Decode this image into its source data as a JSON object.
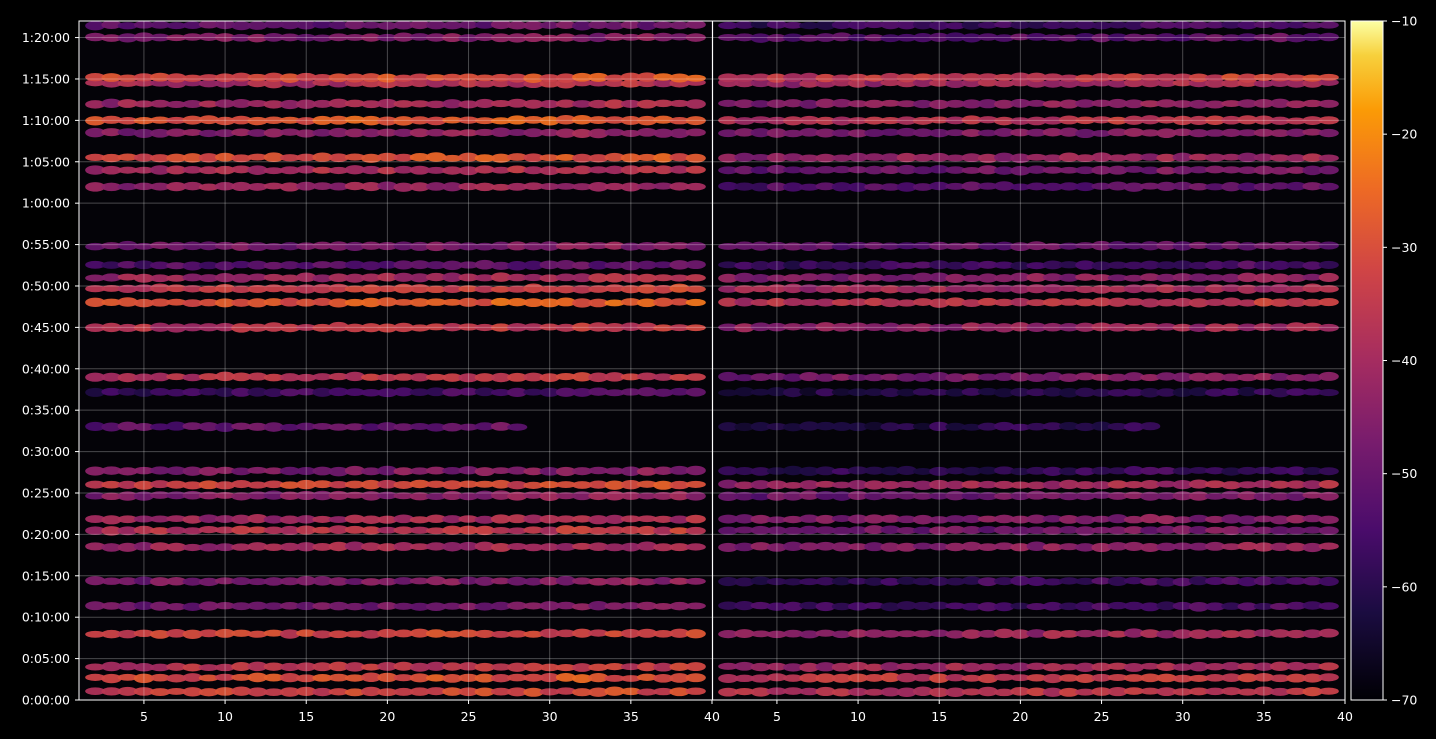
{
  "chart_data": {
    "type": "heatmap",
    "title": "",
    "xlabel": "",
    "ylabel": "",
    "panels": [
      {
        "name": "",
        "xlim": [
          1,
          40
        ],
        "xticks": [
          5,
          10,
          15,
          20,
          25,
          30,
          35,
          40
        ]
      },
      {
        "name": "",
        "xlim": [
          1,
          40
        ],
        "xticks": [
          5,
          10,
          15,
          20,
          25,
          30,
          35,
          40
        ]
      }
    ],
    "y_unit": "h:mm:ss",
    "ylim": [
      0,
      4920
    ],
    "yticks": [
      {
        "label": "0:00:00",
        "value": 0
      },
      {
        "label": "0:05:00",
        "value": 300
      },
      {
        "label": "0:10:00",
        "value": 600
      },
      {
        "label": "0:15:00",
        "value": 900
      },
      {
        "label": "0:20:00",
        "value": 1200
      },
      {
        "label": "0:25:00",
        "value": 1500
      },
      {
        "label": "0:30:00",
        "value": 1800
      },
      {
        "label": "0:35:00",
        "value": 2100
      },
      {
        "label": "0:40:00",
        "value": 2400
      },
      {
        "label": "0:45:00",
        "value": 2700
      },
      {
        "label": "0:50:00",
        "value": 3000
      },
      {
        "label": "0:55:00",
        "value": 3300
      },
      {
        "label": "1:00:00",
        "value": 3600
      },
      {
        "label": "1:05:00",
        "value": 3900
      },
      {
        "label": "1:10:00",
        "value": 4200
      },
      {
        "label": "1:15:00",
        "value": 4500
      },
      {
        "label": "1:20:00",
        "value": 4800
      }
    ],
    "colorbar": {
      "colormap": "inferno",
      "range": [
        -70,
        -10
      ],
      "ticks": [
        -10,
        -20,
        -30,
        -40,
        -50,
        -60,
        -70
      ],
      "tick_labels": [
        "−10",
        "−20",
        "−30",
        "−40",
        "−50",
        "−60",
        "−70"
      ]
    },
    "grid": true,
    "bands": [
      {
        "y": 60,
        "level": -32,
        "x_from": 2,
        "x_to": 39,
        "right_level": -36
      },
      {
        "y": 160,
        "level": -30,
        "x_from": 2,
        "x_to": 39,
        "right_level": -34
      },
      {
        "y": 240,
        "level": -36,
        "x_from": 2,
        "x_to": 39,
        "right_level": -40
      },
      {
        "y": 480,
        "level": -32,
        "x_from": 2,
        "x_to": 39,
        "right_level": -41
      },
      {
        "y": 680,
        "level": -48,
        "x_from": 2,
        "x_to": 39,
        "right_level": -56
      },
      {
        "y": 860,
        "level": -46,
        "x_from": 2,
        "x_to": 39,
        "right_level": -56
      },
      {
        "y": 1110,
        "level": -40,
        "x_from": 2,
        "x_to": 39,
        "right_level": -44
      },
      {
        "y": 1230,
        "level": -36,
        "x_from": 2,
        "x_to": 39,
        "right_level": -48
      },
      {
        "y": 1310,
        "level": -40,
        "x_from": 2,
        "x_to": 39,
        "right_level": -46
      },
      {
        "y": 1480,
        "level": -44,
        "x_from": 2,
        "x_to": 39,
        "right_level": -48
      },
      {
        "y": 1560,
        "level": -32,
        "x_from": 2,
        "x_to": 39,
        "right_level": -40
      },
      {
        "y": 1660,
        "level": -46,
        "x_from": 2,
        "x_to": 39,
        "right_level": -58
      },
      {
        "y": 1980,
        "level": -50,
        "x_from": 2,
        "x_to": 28,
        "right_level": -60
      },
      {
        "y": 2340,
        "level": -36,
        "x_from": 2,
        "x_to": 39,
        "right_level": -46
      },
      {
        "y": 2230,
        "level": -56,
        "x_from": 2,
        "x_to": 39,
        "right_level": -60
      },
      {
        "y": 2700,
        "level": -36,
        "x_from": 2,
        "x_to": 39,
        "right_level": -42
      },
      {
        "y": 2880,
        "level": -28,
        "x_from": 2,
        "x_to": 39,
        "right_level": -36
      },
      {
        "y": 2980,
        "level": -34,
        "x_from": 2,
        "x_to": 39,
        "right_level": -40
      },
      {
        "y": 3060,
        "level": -40,
        "x_from": 2,
        "x_to": 39,
        "right_level": -44
      },
      {
        "y": 3290,
        "level": -46,
        "x_from": 2,
        "x_to": 39,
        "right_level": -50
      },
      {
        "y": 3150,
        "level": -52,
        "x_from": 2,
        "x_to": 39,
        "right_level": -56
      },
      {
        "y": 3720,
        "level": -42,
        "x_from": 2,
        "x_to": 39,
        "right_level": -52
      },
      {
        "y": 3840,
        "level": -38,
        "x_from": 2,
        "x_to": 39,
        "right_level": -48
      },
      {
        "y": 3930,
        "level": -30,
        "x_from": 2,
        "x_to": 39,
        "right_level": -42
      },
      {
        "y": 4110,
        "level": -44,
        "x_from": 2,
        "x_to": 39,
        "right_level": -46
      },
      {
        "y": 4200,
        "level": -28,
        "x_from": 2,
        "x_to": 39,
        "right_level": -36
      },
      {
        "y": 4320,
        "level": -40,
        "x_from": 2,
        "x_to": 39,
        "right_level": -44
      },
      {
        "y": 4470,
        "level": -38,
        "x_from": 2,
        "x_to": 39,
        "right_level": -40
      },
      {
        "y": 4510,
        "level": -30,
        "x_from": 2,
        "x_to": 39,
        "right_level": -34
      },
      {
        "y": 4800,
        "level": -46,
        "x_from": 2,
        "x_to": 39,
        "right_level": -52
      },
      {
        "y": 4890,
        "level": -50,
        "x_from": 2,
        "x_to": 39,
        "right_level": -56
      }
    ]
  }
}
